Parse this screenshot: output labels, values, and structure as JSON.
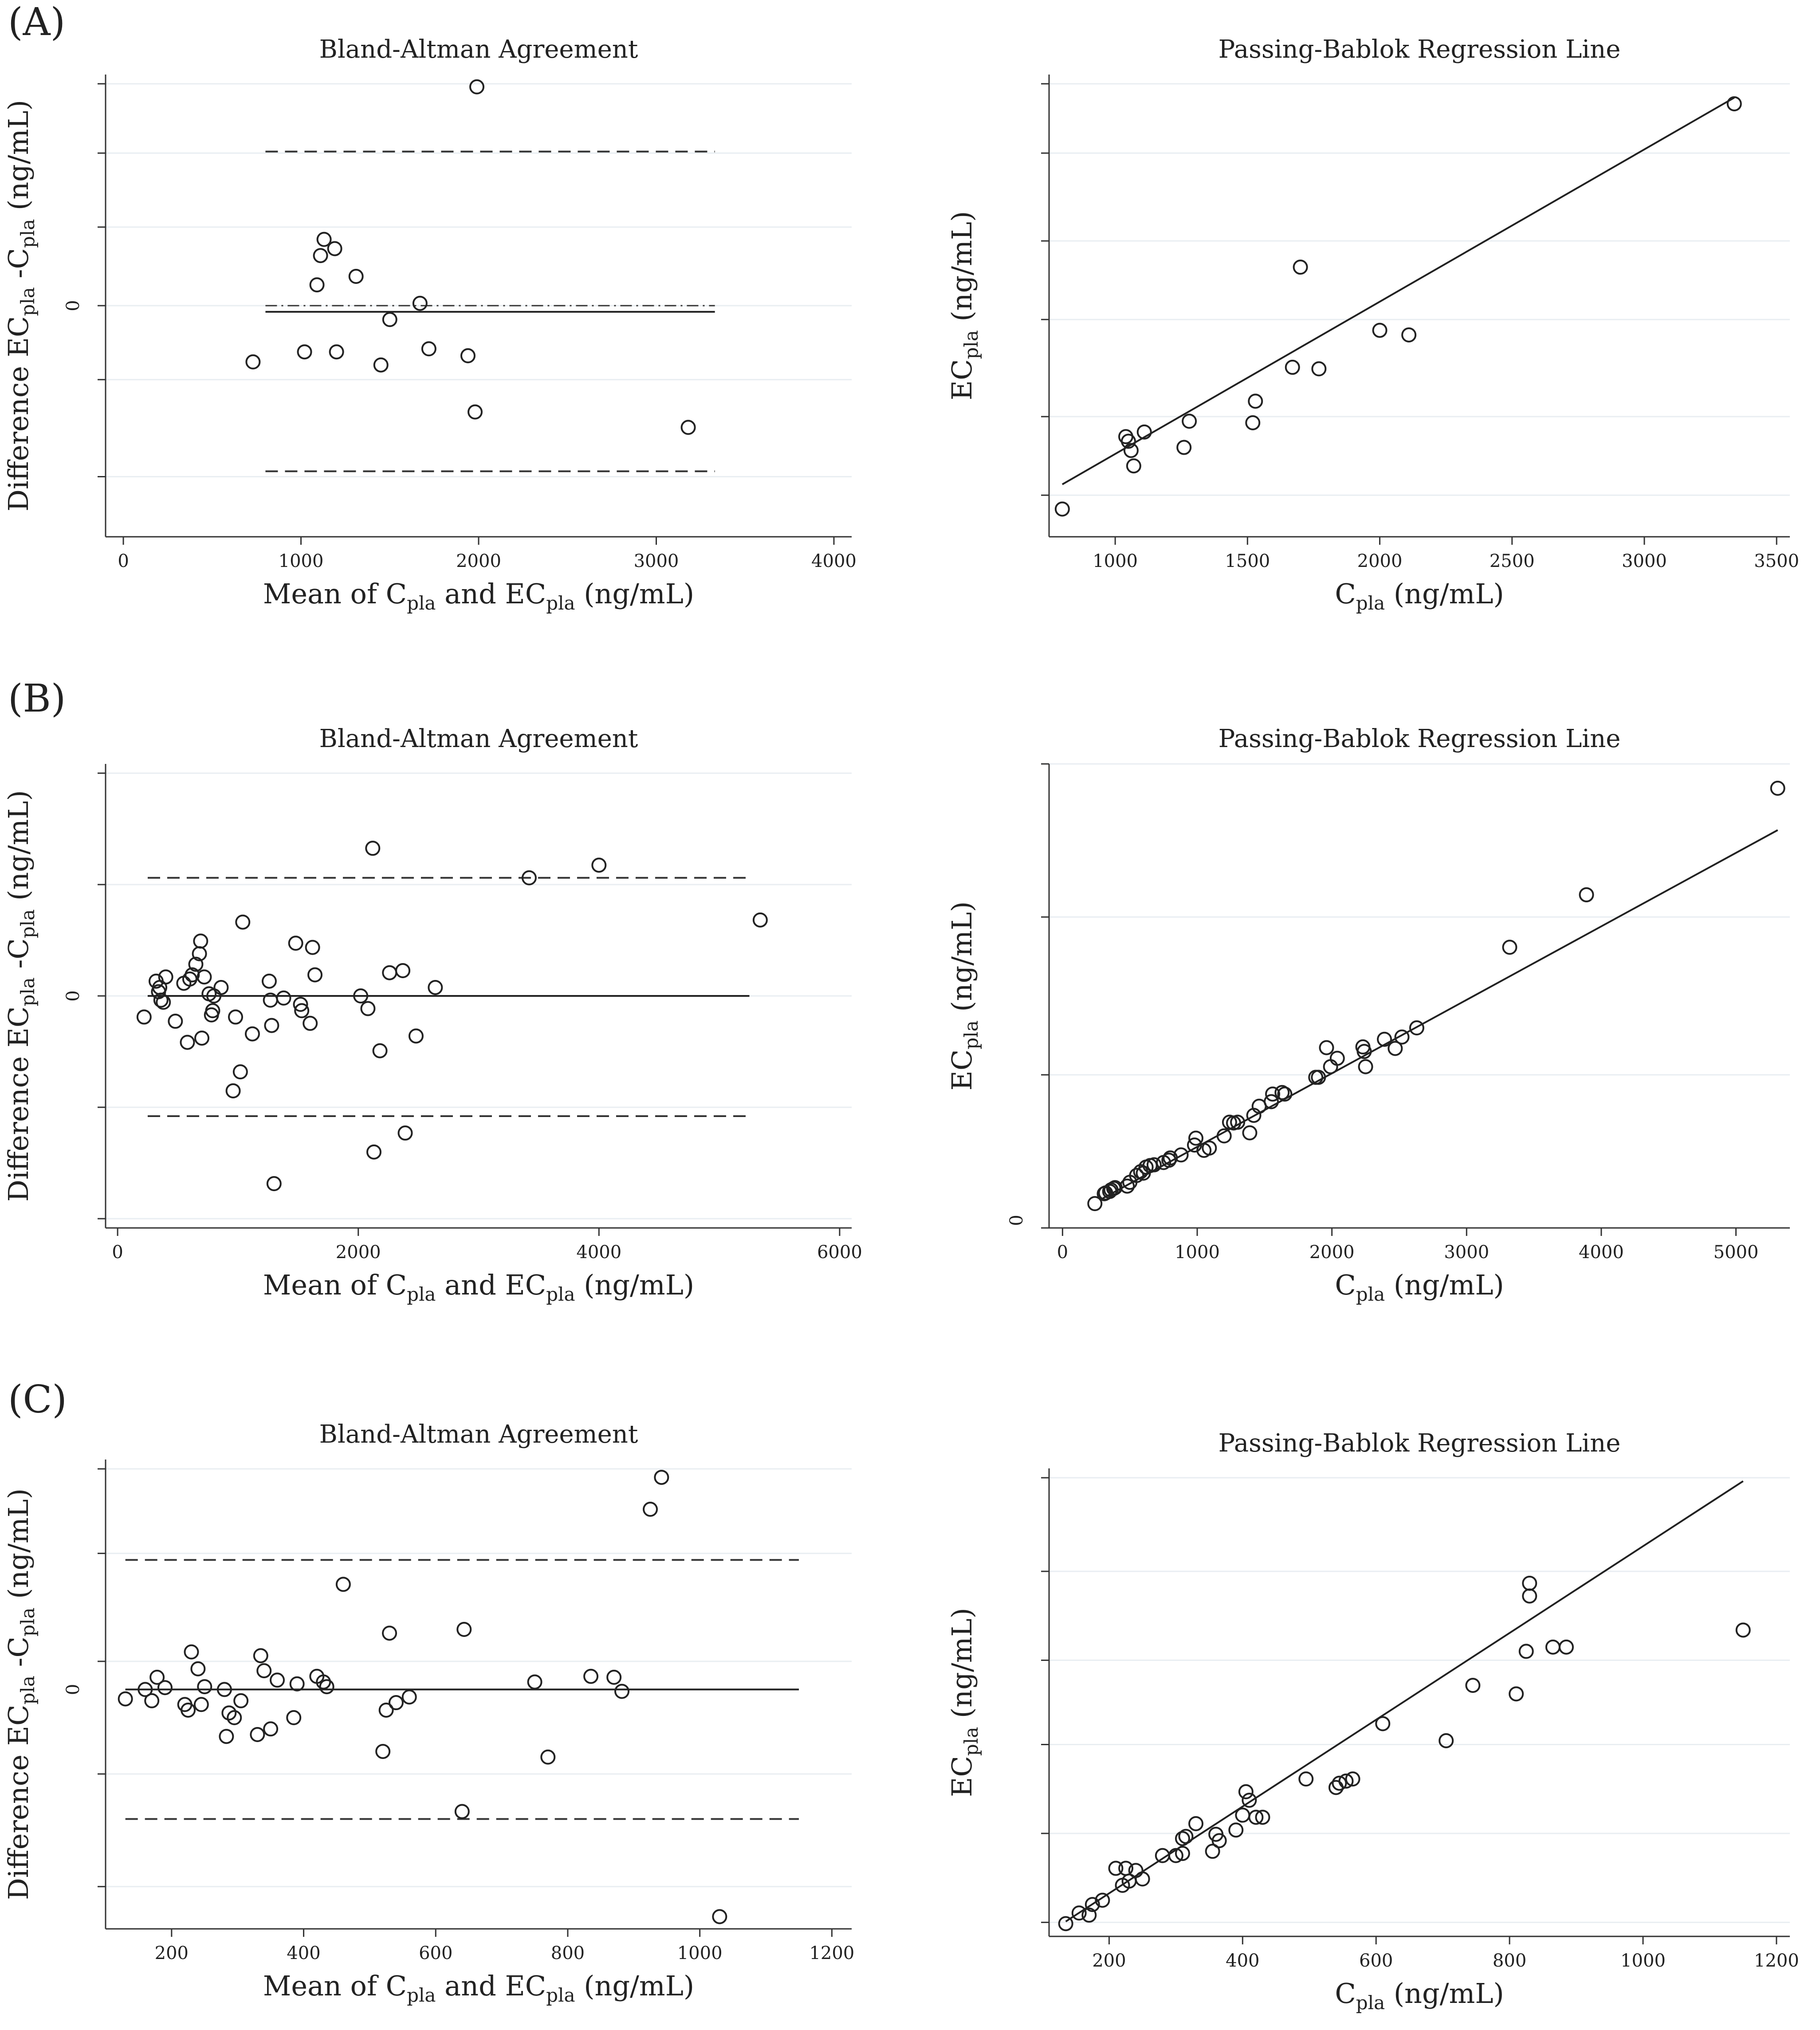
{
  "panels": [
    {
      "label": "(A)"
    },
    {
      "label": "(B)"
    },
    {
      "label": "(C)"
    }
  ],
  "chart_data": [
    {
      "panel": "A",
      "type": "scatter",
      "subtype": "bland-altman",
      "title": "Bland-Altman Agreement",
      "xlabel": "Mean of  C_pla and EC_pla (ng/mL)",
      "ylabel": "Difference EC_pla -C_pla (ng/mL)",
      "xticks": [
        "0",
        "1000",
        "2000",
        "3000",
        "4000"
      ],
      "yticks": [
        "0"
      ],
      "xlim": [
        -100,
        4100
      ],
      "ylim": [
        -300,
        300
      ],
      "lines": {
        "mean": -8,
        "zero": 0,
        "loa": [
          -215,
          200
        ],
        "x_range": [
          800,
          3330
        ]
      },
      "x": [
        730,
        1020,
        1090,
        1110,
        1130,
        1190,
        1200,
        1310,
        1450,
        1500,
        1670,
        1720,
        1940,
        1980,
        1990,
        3180
      ],
      "y": [
        -73,
        -60,
        27,
        65,
        86,
        74,
        -60,
        38,
        -77,
        -18,
        3,
        -56,
        -65,
        -138,
        284,
        -158
      ]
    },
    {
      "panel": "A",
      "type": "scatter",
      "subtype": "passing-bablok",
      "title": "Passing-Bablok Regression Line",
      "xlabel": "C_pla (ng/mL)",
      "ylabel": "EC_pla (ng/mL)",
      "xticks": [
        "1000",
        "1500",
        "2000",
        "2500",
        "3000",
        "3500"
      ],
      "yticks": [],
      "xlim": [
        750,
        3550
      ],
      "ylim": [
        500,
        3500
      ],
      "fit": {
        "x": [
          800,
          3340
        ],
        "y": [
          840,
          3350
        ]
      },
      "x": [
        800,
        1040,
        1050,
        1060,
        1070,
        1110,
        1260,
        1280,
        1520,
        1530,
        1670,
        1700,
        1770,
        2000,
        2110,
        3340
      ],
      "y": [
        680,
        1150,
        1120,
        1060,
        960,
        1180,
        1080,
        1250,
        1240,
        1380,
        1600,
        2250,
        1590,
        1840,
        1810,
        3310
      ]
    },
    {
      "panel": "B",
      "type": "scatter",
      "subtype": "bland-altman",
      "title": "Bland-Altman Agreement",
      "xlabel": "Mean of  C_pla and EC_pla (ng/mL)",
      "ylabel": "Difference EC_pla -C_pla (ng/mL)",
      "xticks": [
        "0",
        "2000",
        "4000",
        "6000"
      ],
      "yticks": [
        "0"
      ],
      "xlim": [
        -100,
        6100
      ],
      "ylim": [
        -1100,
        1100
      ],
      "lines": {
        "mean": 0,
        "zero": 0,
        "loa": [
          -570,
          560
        ],
        "x_range": [
          250,
          5250
        ]
      },
      "x": [
        220,
        320,
        340,
        350,
        360,
        380,
        400,
        480,
        550,
        580,
        600,
        620,
        650,
        680,
        690,
        700,
        720,
        760,
        780,
        790,
        800,
        860,
        960,
        980,
        1020,
        1040,
        1120,
        1260,
        1270,
        1280,
        1300,
        1380,
        1480,
        1520,
        1530,
        1600,
        1620,
        1640,
        2020,
        2080,
        2120,
        2130,
        2180,
        2260,
        2370,
        2390,
        2480,
        2640,
        3420,
        4000,
        5340
      ],
      "y": [
        -100,
        70,
        20,
        40,
        -20,
        -30,
        90,
        -120,
        60,
        -220,
        80,
        100,
        150,
        200,
        260,
        -200,
        90,
        10,
        -90,
        -70,
        0,
        40,
        -450,
        -100,
        -360,
        350,
        -180,
        70,
        -20,
        -140,
        -890,
        -10,
        250,
        -40,
        -70,
        -130,
        230,
        100,
        0,
        -60,
        700,
        -740,
        -260,
        110,
        120,
        -650,
        -190,
        40,
        560,
        620,
        360
      ]
    },
    {
      "panel": "B",
      "type": "scatter",
      "subtype": "passing-bablok",
      "title": "Passing-Bablok Regression Line",
      "xlabel": "C_pla (ng/mL)",
      "ylabel": "EC_pla (ng/mL)",
      "xticks": [
        "0",
        "1000",
        "2000",
        "3000",
        "4000",
        "5000"
      ],
      "yticks": [
        "0"
      ],
      "xlim": [
        -100,
        5400
      ],
      "ylim": [
        -100,
        6000
      ],
      "fit": {
        "x": [
          300,
          5310
        ],
        "y": [
          290,
          5130
        ]
      },
      "x": [
        240,
        310,
        320,
        350,
        360,
        380,
        390,
        480,
        500,
        550,
        580,
        600,
        620,
        650,
        680,
        750,
        790,
        800,
        880,
        980,
        990,
        1050,
        1090,
        1200,
        1240,
        1270,
        1300,
        1390,
        1420,
        1460,
        1550,
        1560,
        1630,
        1650,
        1880,
        1900,
        1960,
        1990,
        2040,
        2230,
        2240,
        2250,
        2390,
        2470,
        2520,
        2630,
        3320,
        3890,
        5310
      ],
      "y": [
        220,
        350,
        360,
        380,
        400,
        420,
        430,
        450,
        500,
        590,
        640,
        620,
        700,
        720,
        730,
        760,
        790,
        820,
        860,
        990,
        1080,
        920,
        950,
        1110,
        1290,
        1280,
        1290,
        1150,
        1380,
        1500,
        1560,
        1660,
        1680,
        1660,
        1880,
        1880,
        2270,
        2020,
        2130,
        2280,
        2220,
        2020,
        2380,
        2260,
        2410,
        2530,
        3590,
        4280,
        5680
      ]
    },
    {
      "panel": "C",
      "type": "scatter",
      "subtype": "bland-altman",
      "title": "Bland-Altman Agreement",
      "xlabel": "Mean of  C_pla and EC_pla (ng/mL)",
      "ylabel": "Difference EC_pla -C_pla (ng/mL)",
      "xticks": [
        "200",
        "400",
        "600",
        "800",
        "1000",
        "1200"
      ],
      "yticks": [
        "0"
      ],
      "xlim": [
        100,
        1230
      ],
      "ylim": [
        -255,
        245
      ],
      "lines": {
        "mean": 0,
        "zero": 0,
        "loa": [
          -138,
          138
        ],
        "x_range": [
          130,
          1150
        ]
      },
      "x": [
        130,
        160,
        170,
        178,
        190,
        220,
        225,
        230,
        240,
        245,
        250,
        280,
        283,
        287,
        295,
        305,
        330,
        335,
        340,
        350,
        360,
        385,
        390,
        420,
        430,
        435,
        460,
        520,
        525,
        530,
        540,
        560,
        640,
        643,
        750,
        770,
        835,
        870,
        882,
        925,
        942,
        1030
      ],
      "y": [
        -10,
        0,
        -12,
        13,
        2,
        -16,
        -22,
        40,
        22,
        -16,
        3,
        0,
        -50,
        -25,
        -30,
        -12,
        -48,
        36,
        20,
        -42,
        10,
        -30,
        6,
        14,
        8,
        3,
        112,
        -66,
        -22,
        60,
        -14,
        -8,
        -130,
        64,
        8,
        -72,
        14,
        13,
        -2,
        192,
        226,
        -242
      ]
    },
    {
      "panel": "C",
      "type": "scatter",
      "subtype": "passing-bablok",
      "title": "Passing-Bablok Regression Line",
      "xlabel": "C_pla (ng/mL)",
      "ylabel": "EC_pla (ng/mL)",
      "xticks": [
        "200",
        "400",
        "600",
        "800",
        "1000",
        "1200"
      ],
      "yticks": [],
      "xlim": [
        110,
        1220
      ],
      "ylim": [
        100,
        1200
      ],
      "fit": {
        "x": [
          135,
          1150
        ],
        "y": [
          135,
          1170
        ]
      },
      "x": [
        135,
        155,
        170,
        175,
        190,
        210,
        220,
        225,
        230,
        240,
        250,
        280,
        300,
        310,
        310,
        315,
        330,
        355,
        360,
        365,
        390,
        400,
        405,
        410,
        420,
        430,
        495,
        540,
        545,
        555,
        565,
        610,
        705,
        745,
        810,
        825,
        830,
        830,
        865,
        885,
        1150
      ],
      "y": [
        130,
        155,
        150,
        175,
        185,
        260,
        220,
        260,
        230,
        255,
        235,
        290,
        290,
        295,
        330,
        335,
        365,
        300,
        340,
        325,
        350,
        385,
        440,
        420,
        380,
        380,
        470,
        450,
        460,
        465,
        470,
        600,
        560,
        690,
        670,
        770,
        900,
        930,
        780,
        780,
        820
      ]
    }
  ]
}
